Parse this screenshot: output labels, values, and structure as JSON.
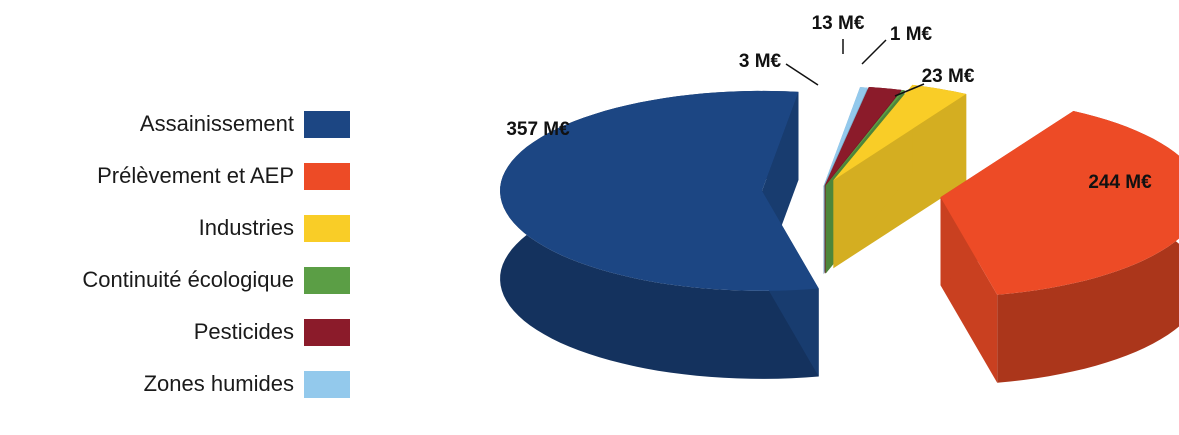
{
  "chart_data": {
    "type": "pie",
    "style": "3d-exploded",
    "legend_position": "left",
    "unit": "M€",
    "slices": [
      {
        "name": "Assainissement",
        "value": 357,
        "label": "357 M€",
        "color": "#1c4683"
      },
      {
        "name": "Prélèvement et AEP",
        "value": 244,
        "label": "244 M€",
        "color": "#ed4b26"
      },
      {
        "name": "Industries",
        "value": 23,
        "label": "23 M€",
        "color": "#f9cd27"
      },
      {
        "name": "Continuité écologique",
        "value": 1,
        "label": "1 M€",
        "color": "#5b9e45"
      },
      {
        "name": "Pesticides",
        "value": 13,
        "label": "13 M€",
        "color": "#8b1b2a"
      },
      {
        "name": "Zones humides",
        "value": 3,
        "label": "3 M€",
        "color": "#93c9ec"
      }
    ]
  }
}
